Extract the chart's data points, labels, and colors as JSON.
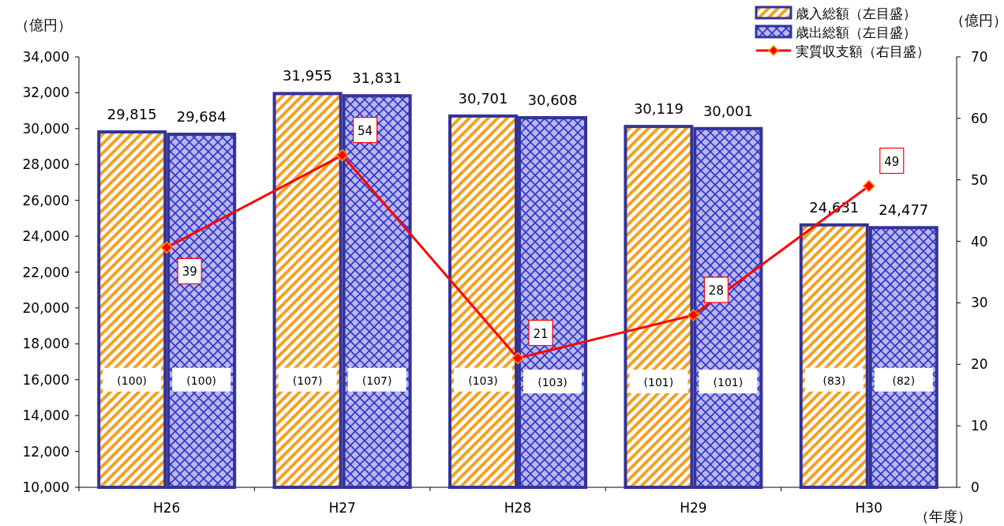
{
  "chart_data": {
    "type": "bar",
    "categories": [
      "H26",
      "H27",
      "H28",
      "H29",
      "H30"
    ],
    "series": [
      {
        "name": "歳入総額（左目盛）",
        "color": "#f5a020",
        "values": [
          29815,
          31955,
          30701,
          30119,
          24631
        ],
        "value_labels": [
          "29,815",
          "31,955",
          "30,701",
          "30,119",
          "24,631"
        ]
      },
      {
        "name": "歳出総額（左目盛）",
        "color": "#3333cc",
        "values": [
          29684,
          31831,
          30608,
          30001,
          24477
        ],
        "value_labels": [
          "29,684",
          "31,831",
          "30,608",
          "30,001",
          "24,477"
        ]
      },
      {
        "name": "実質収支額（右目盛）",
        "type": "line",
        "axis": "y2",
        "color": "#ff0000",
        "marker": "diamond",
        "values": [
          39,
          54,
          21,
          28,
          49
        ]
      }
    ],
    "ylabel": "（億円）",
    "y2label": "（億円）",
    "xlabel": "（年度）",
    "ylim": [
      10000,
      34000
    ],
    "yticks": [
      {
        "value": 10000,
        "label": "10,000"
      },
      {
        "value": 12000,
        "label": "12,000"
      },
      {
        "value": 14000,
        "label": "14,000"
      },
      {
        "value": 16000,
        "label": "16,000"
      },
      {
        "value": 18000,
        "label": "18,000"
      },
      {
        "value": 20000,
        "label": "20,000"
      },
      {
        "value": 22000,
        "label": "22,000"
      },
      {
        "value": 24000,
        "label": "24,000"
      },
      {
        "value": 26000,
        "label": "26,000"
      },
      {
        "value": 28000,
        "label": "28,000"
      },
      {
        "value": 30000,
        "label": "30,000"
      },
      {
        "value": 32000,
        "label": "32,000"
      },
      {
        "value": 34000,
        "label": "34,000"
      }
    ],
    "y2lim": [
      0,
      70
    ],
    "y2ticks": [
      0,
      10,
      20,
      30,
      40,
      50,
      60,
      70
    ],
    "data_labels": true,
    "grid": false,
    "legend": "top right",
    "annotations": [
      {
        "text": "(100)",
        "x": "H26",
        "y": 16000
      },
      {
        "text": "(100)",
        "x": "H26",
        "y": 16000
      },
      {
        "text": "(107)",
        "x": "H27",
        "y": 16000
      },
      {
        "text": "(107)",
        "x": "H27",
        "y": 16000
      },
      {
        "text": "(103)",
        "x": "H28",
        "y": 16000
      },
      {
        "text": "(103)",
        "x": "H28",
        "y": 15900
      },
      {
        "text": "(101)",
        "x": "H29",
        "y": 15900
      },
      {
        "text": "(101)",
        "x": "H29",
        "y": 15900
      },
      {
        "text": "(83)",
        "x": "H30",
        "y": 16000
      },
      {
        "text": "(82)",
        "x": "H30",
        "y": 16000
      }
    ]
  }
}
